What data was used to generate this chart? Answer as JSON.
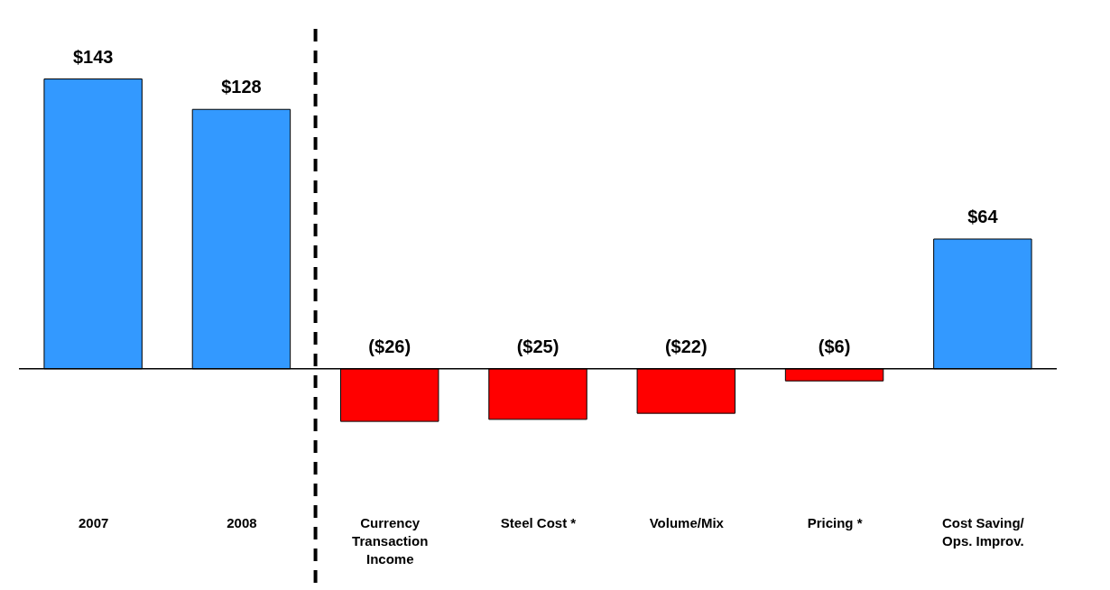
{
  "chart_data": {
    "type": "bar",
    "categories": [
      "2007",
      "2008",
      "Currency\nTransaction\nIncome",
      "Steel Cost *",
      "Volume/Mix",
      "Pricing *",
      "Cost Saving/\nOps. Improv."
    ],
    "values": [
      143,
      128,
      -26,
      -25,
      -22,
      -6,
      64
    ],
    "colors": [
      "#3399ff",
      "#3399ff",
      "#ff0000",
      "#ff0000",
      "#ff0000",
      "#ff0000",
      "#3399ff"
    ],
    "value_labels": [
      "$143",
      "$128",
      "($26)",
      "($25)",
      "($22)",
      "($6)",
      "$64"
    ],
    "tick_labels": "x",
    "grid": false
  }
}
